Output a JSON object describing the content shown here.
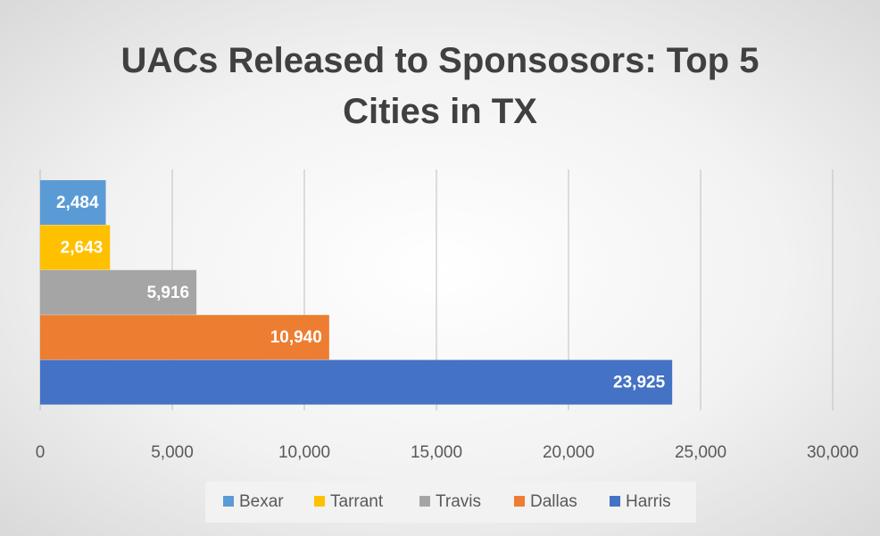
{
  "chart_data": {
    "type": "bar",
    "orientation": "horizontal",
    "title": "UACs Released to Sponsosors: Top 5 Cities in TX",
    "series": [
      {
        "name": "Bexar",
        "color": "#5b9bd5",
        "values": [
          2484
        ],
        "value_labels": [
          "2,484"
        ]
      },
      {
        "name": "Tarrant",
        "color": "#ffc000",
        "values": [
          2643
        ],
        "value_labels": [
          "2,643"
        ]
      },
      {
        "name": "Travis",
        "color": "#a5a5a5",
        "values": [
          5916
        ],
        "value_labels": [
          "5,916"
        ]
      },
      {
        "name": "Dallas",
        "color": "#ed7d31",
        "values": [
          10940
        ],
        "value_labels": [
          "10,940"
        ]
      },
      {
        "name": "Harris",
        "color": "#4472c4",
        "values": [
          23925
        ],
        "value_labels": [
          "23,925"
        ]
      }
    ],
    "xlim": [
      0,
      30000
    ],
    "xticks": [
      0,
      {
        "value": 5000,
        "label": "5,000"
      },
      {
        "value": 10000,
        "label": "10,000"
      },
      {
        "value": 15000,
        "label": "15,000"
      },
      {
        "value": 20000,
        "label": "20,000"
      },
      {
        "value": 25000,
        "label": "25,000"
      },
      {
        "value": 30000,
        "label": "30,000"
      }
    ],
    "grid": true,
    "legend": "bottom"
  }
}
